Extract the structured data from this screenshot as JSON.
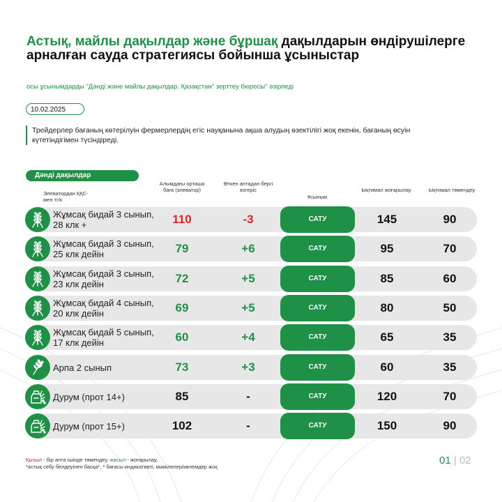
{
  "title": {
    "green_part": "Астық, майлы дақылдар және бұршақ",
    "rest": " дақылдарын өндірушілерге арналған сауда стратегиясы бойынша ұсыныстар"
  },
  "subtitle": "осы ұсынымдарды \"Дәнді және майлы дақылдар. Қазақстан\" зерттеу бюросы\" әзірледі",
  "date": "10.02.2025",
  "note": "Трейдерлер бағаның көтерілуін фермерлердің егіс науқанына ақша алудың өзектілігі жоқ екенін, бағаның өсуін күтетіндігімен түсіндіреді.",
  "section": "Дәнді дақылдар",
  "headers": {
    "culture": "Элеватордан ҚҚС-мен тг/к",
    "price": "Алымдағы орташа баға (элеватор)",
    "change": "Өткен аптадан бергі өзгеріс",
    "recommendation": "Ұсыным",
    "up": "Ықтимал жоғарылау",
    "down": "Ықтимал төмендеу"
  },
  "colors": {
    "accent": "#1e9146",
    "negative": "#e3232a",
    "row_bg": "#e7e7e7"
  },
  "rows": [
    {
      "name": "Жұмсақ бидай 3 сынып, 28 клк +",
      "icon": "wheat-icon",
      "price": "110",
      "price_color": "red",
      "change": "-3",
      "change_color": "red",
      "action": "САТУ",
      "up": "145",
      "down": "90"
    },
    {
      "name": "Жұмсақ бидай 3 сынып, 25 клк дейін",
      "icon": "wheat-icon",
      "price": "79",
      "price_color": "green",
      "change": "+6",
      "change_color": "green",
      "action": "САТУ",
      "up": "95",
      "down": "70"
    },
    {
      "name": "Жұмсақ бидай 3 сынып, 23 клк дейін",
      "icon": "wheat-icon",
      "price": "72",
      "price_color": "green",
      "change": "+5",
      "change_color": "green",
      "action": "САТУ",
      "up": "85",
      "down": "60"
    },
    {
      "name": "Жұмсақ бидай 4 сынып, 20 клк дейін",
      "icon": "wheat-icon",
      "price": "69",
      "price_color": "green",
      "change": "+5",
      "change_color": "green",
      "action": "САТУ",
      "up": "80",
      "down": "50"
    },
    {
      "name": "Жұмсақ бидай 5 сынып, 17 клк дейін",
      "icon": "wheat-icon",
      "price": "60",
      "price_color": "green",
      "change": "+4",
      "change_color": "green",
      "action": "САТУ",
      "up": "65",
      "down": "35"
    },
    {
      "name": "Арпа 2 сынып",
      "icon": "barley-icon",
      "price": "73",
      "price_color": "green",
      "change": "+3",
      "change_color": "green",
      "action": "САТУ",
      "up": "60",
      "down": "35"
    },
    {
      "name": "Дурум (прот 14+)",
      "icon": "grain-sack-icon",
      "price": "85",
      "price_color": "black",
      "change": "-",
      "change_color": "black",
      "action": "САТУ",
      "up": "120",
      "down": "70"
    },
    {
      "name": "Дурум (прот 15+)",
      "icon": "grain-sack-icon",
      "price": "102",
      "price_color": "black",
      "change": "-",
      "change_color": "black",
      "action": "САТУ",
      "up": "150",
      "down": "90"
    }
  ],
  "footnote": {
    "red_word": "Қызыл",
    "mid1": " - бір апта ішінде төмендеу, ",
    "green_word": "жасыл",
    "mid2": " - жоғарылау,",
    "line2": "*астық себу белдеуінен басқа*, * бағасы индикативті, мәмілелер/көлемдер жоқ"
  },
  "pager": {
    "current": "01",
    "separator": "|",
    "other": "02"
  }
}
